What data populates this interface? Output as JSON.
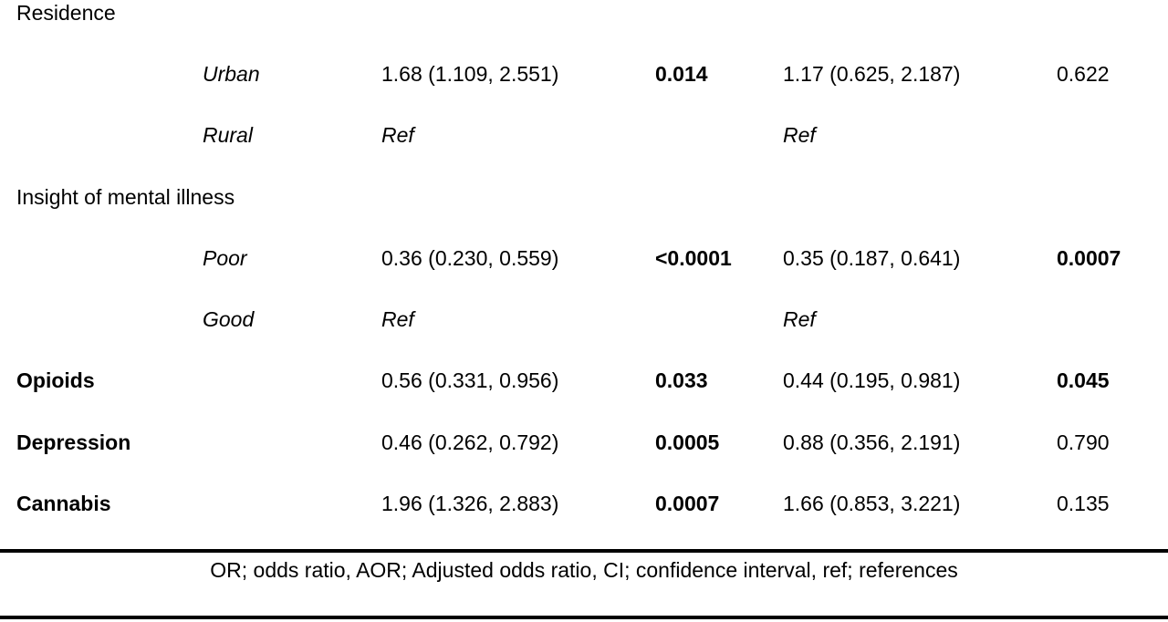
{
  "table": {
    "rows": [
      {
        "label": "Residence"
      },
      {
        "sublabel": "Urban",
        "or": "1.68 (1.109, 2.551)",
        "p": "0.014",
        "aor": "1.17 (0.625, 2.187)",
        "ap": "0.622"
      },
      {
        "sublabel": "Rural",
        "or": "Ref",
        "aor": "Ref"
      },
      {
        "label": "Insight of mental illness"
      },
      {
        "sublabel": "Poor",
        "or": "0.36 (0.230, 0.559)",
        "p": "<0.0001",
        "aor": "0.35 (0.187, 0.641)",
        "ap": "0.0007"
      },
      {
        "sublabel": "Good",
        "or": "Ref",
        "aor": "Ref"
      },
      {
        "label": "Opioids",
        "or": "0.56 (0.331, 0.956)",
        "p": "0.033",
        "aor": "0.44 (0.195, 0.981)",
        "ap": "0.045"
      },
      {
        "label": "Depression",
        "or": "0.46 (0.262, 0.792)",
        "p": "0.0005",
        "aor": "0.88 (0.356, 2.191)",
        "ap": "0.790"
      },
      {
        "label": "Cannabis",
        "or": "1.96 (1.326, 2.883)",
        "p": "0.0007",
        "aor": "1.66 (0.853, 3.221)",
        "ap": "0.135"
      }
    ],
    "footnote": "OR; odds ratio, AOR; Adjusted odds ratio, CI; confidence interval, ref; references"
  }
}
